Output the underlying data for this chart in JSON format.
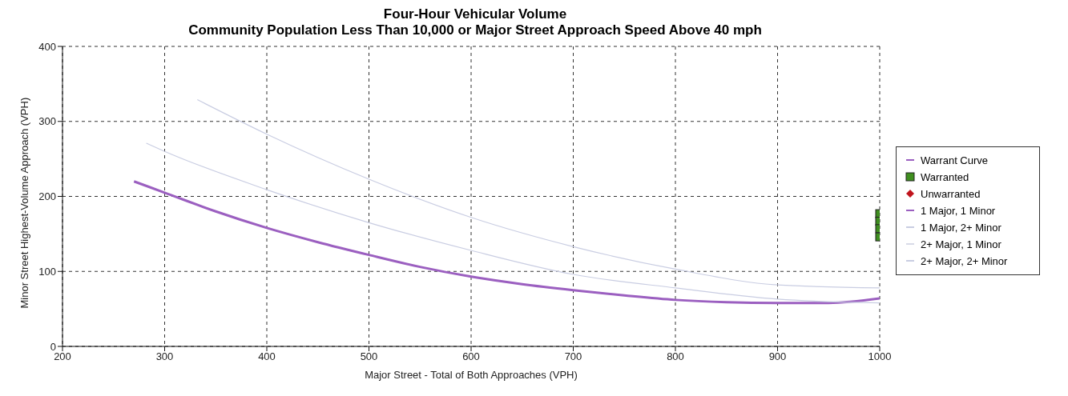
{
  "chart_data": {
    "type": "line",
    "title": "Four-Hour Vehicular Volume",
    "subtitle": "Community Population Less Than 10,000 or Major Street Approach Speed Above 40 mph",
    "xlabel": "Major Street - Total of Both Approaches (VPH)",
    "ylabel": "Minor Street Highest-Volume Approach (VPH)",
    "xlim": [
      200,
      1000
    ],
    "xticks": [
      200,
      300,
      400,
      500,
      600,
      700,
      800,
      900,
      1000
    ],
    "ylim": [
      0,
      400
    ],
    "yticks": [
      0,
      100,
      200,
      300,
      400
    ],
    "grid": true,
    "legend": "right",
    "line_style": "solid",
    "series": [
      {
        "name": "Warrant Curve",
        "color": "#9b5fc0"
      },
      {
        "name": "Warranted",
        "type": "scatter",
        "marker": "square",
        "color": "#3f8f1f",
        "x": [
          1000,
          1000,
          1000,
          1000
        ],
        "values": [
          177,
          167,
          157,
          146
        ]
      },
      {
        "name": "Unwarranted",
        "type": "scatter",
        "marker": "diamond",
        "color": "#c0141c"
      },
      {
        "name": "1 Major, 1 Minor",
        "color": "#9b5fc0",
        "x": [
          270,
          300,
          350,
          400,
          450,
          500,
          550,
          600,
          650,
          700,
          750,
          800,
          850,
          900,
          950,
          1000
        ],
        "values": [
          220,
          205,
          180,
          158,
          139,
          122,
          106,
          93,
          83,
          75,
          68,
          62,
          59,
          58,
          58,
          64
        ]
      },
      {
        "name": "1 Major, 2+ Minor",
        "color": "#c9cde2",
        "x": [
          282,
          300,
          400,
          500,
          600,
          700,
          800,
          900,
          1000
        ],
        "values": [
          271,
          260,
          209,
          165,
          128,
          96,
          78,
          63,
          58
        ]
      },
      {
        "name": "2+ Major, 1 Minor",
        "color": "#d8dbe8"
      },
      {
        "name": "2+ Major, 2+ Minor",
        "color": "#c9cde2",
        "x": [
          332,
          400,
          500,
          600,
          700,
          800,
          900,
          1000
        ],
        "values": [
          329,
          283,
          223,
          172,
          133,
          103,
          82,
          78
        ]
      }
    ]
  }
}
